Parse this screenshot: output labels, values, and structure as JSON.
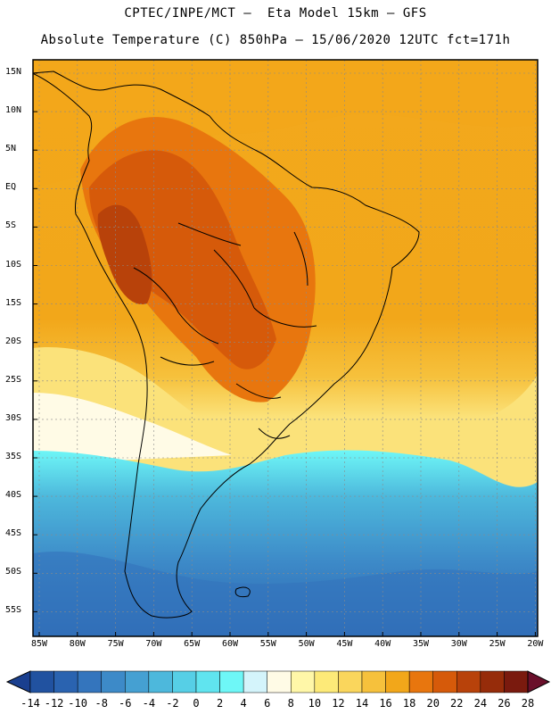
{
  "header": {
    "line1": "CPTEC/INPE/MCT –  Eta Model 15km – GFS",
    "line2": "Absolute Temperature (C) 850hPa – 15/06/2020 12UTC fct=171h"
  },
  "map": {
    "lat_labels": [
      "15N",
      "10N",
      "5N",
      "EQ",
      "5S",
      "10S",
      "15S",
      "20S",
      "25S",
      "30S",
      "35S",
      "40S",
      "45S",
      "50S",
      "55S"
    ],
    "lon_labels": [
      "85W",
      "80W",
      "75W",
      "70W",
      "65W",
      "60W",
      "55W",
      "50W",
      "45W",
      "40W",
      "35W",
      "30W",
      "25W",
      "20W"
    ]
  },
  "colorbar": {
    "labels": [
      "-14",
      "-12",
      "-10",
      "-8",
      "-6",
      "-4",
      "-2",
      "0",
      "2",
      "4",
      "6",
      "8",
      "10",
      "12",
      "14",
      "16",
      "18",
      "20",
      "22",
      "24",
      "26",
      "28"
    ],
    "colors": [
      "#1a3f8f",
      "#2152a0",
      "#2a63b0",
      "#3475bd",
      "#3d8ac8",
      "#45a0d2",
      "#4db8dc",
      "#56cfe6",
      "#60e4ef",
      "#6ef7f7",
      "#d4f4fb",
      "#fffbe6",
      "#fff7a8",
      "#fdea78",
      "#fad65c",
      "#f6c13c",
      "#f2a71a",
      "#e8760e",
      "#d65a0a",
      "#b8420a",
      "#962c0a",
      "#7a1a0e",
      "#6a0f2a"
    ]
  },
  "palette": {
    "land_outline": "#000000",
    "grid": "#8a8a8a",
    "frame": "#000000"
  }
}
